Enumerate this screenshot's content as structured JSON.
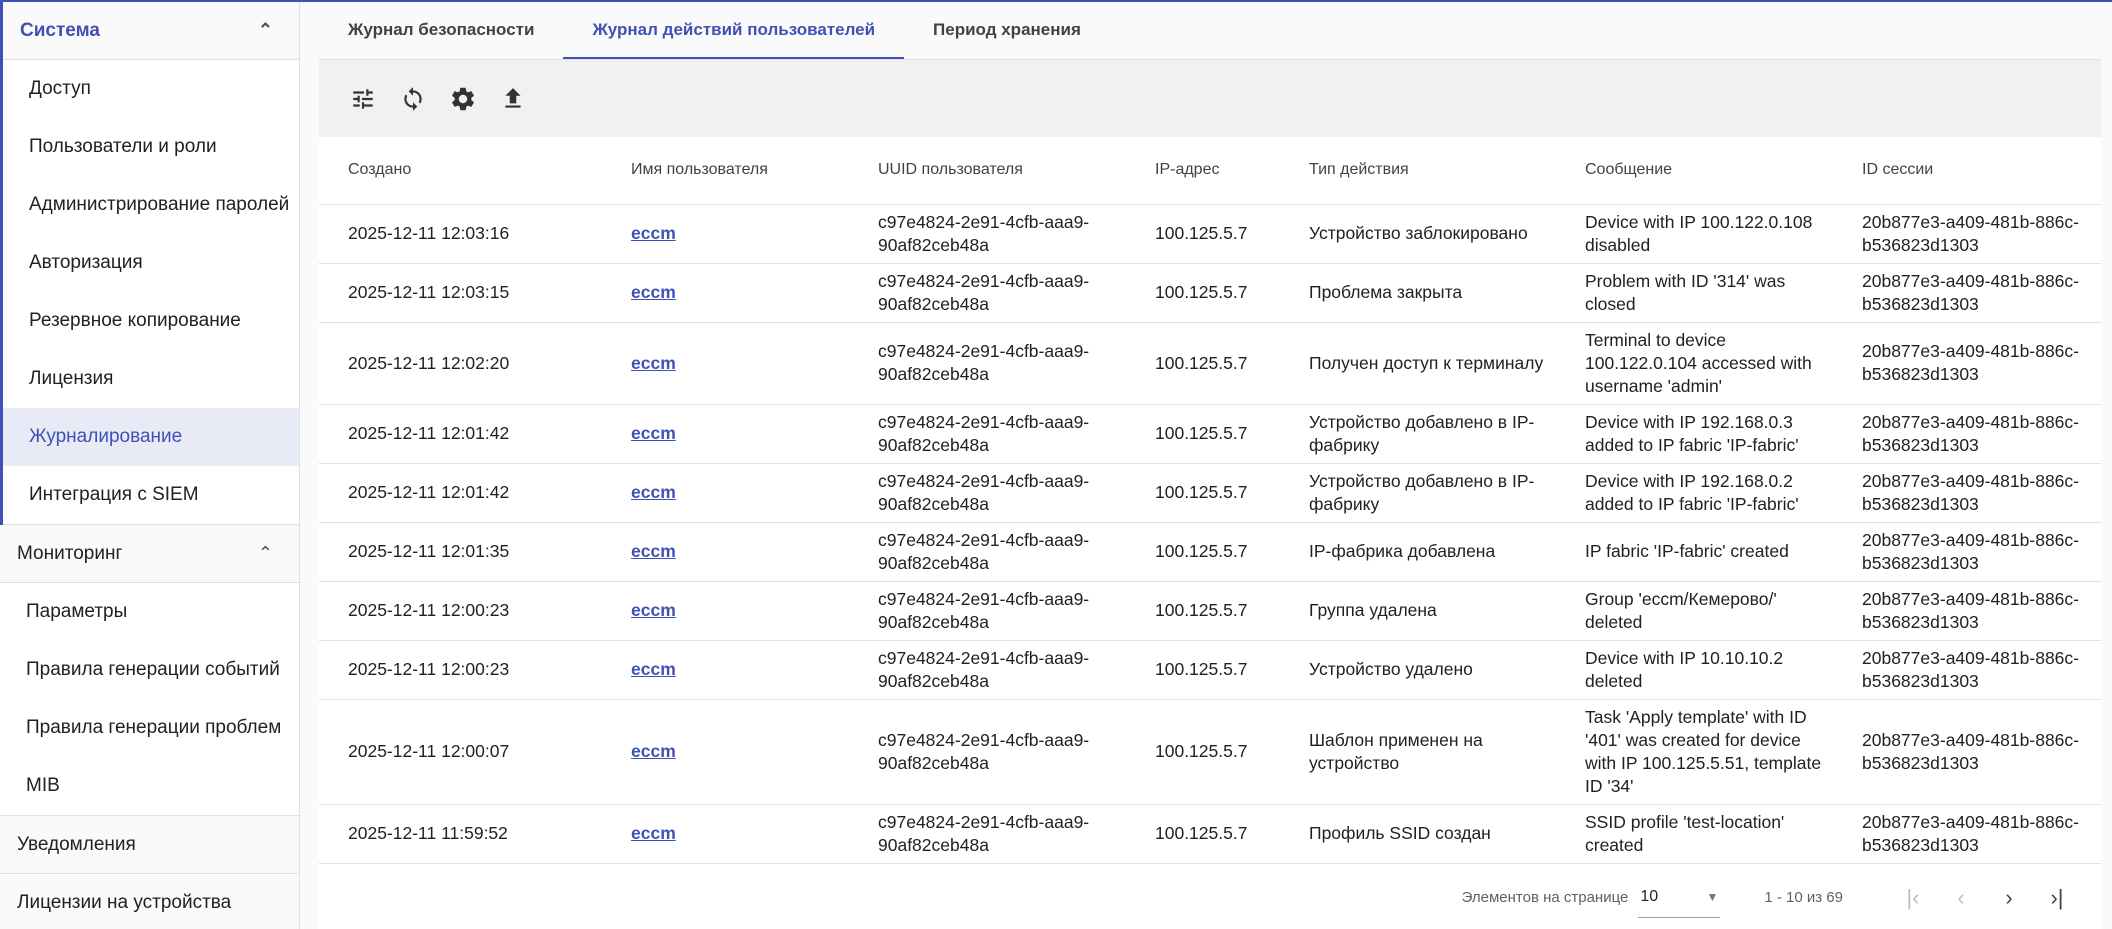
{
  "sidebar": {
    "sections": [
      {
        "label": "Система",
        "items": [
          "Доступ",
          "Пользователи и роли",
          "Администрирование паролей",
          "Авторизация",
          "Резервное копирование",
          "Лицензия",
          "Журналирование",
          "Интеграция с SIEM"
        ],
        "selected": "Журналирование"
      },
      {
        "label": "Мониторинг",
        "items": [
          "Параметры",
          "Правила генерации событий",
          "Правила генерации проблем",
          "MIB"
        ]
      },
      {
        "label": "Уведомления"
      },
      {
        "label": "Лицензии на устройства"
      }
    ]
  },
  "tabs": [
    "Журнал безопасности",
    "Журнал действий пользователей",
    "Период хранения"
  ],
  "active_tab": "Журнал действий пользователей",
  "toolbar": {
    "icons": [
      "tune-icon",
      "refresh-icon",
      "settings-icon",
      "upload-icon"
    ]
  },
  "table": {
    "columns": [
      "Создано",
      "Имя пользователя",
      "UUID пользователя",
      "IP-адрес",
      "Тип действия",
      "Сообщение",
      "ID сессии"
    ],
    "rows": [
      [
        "2025-12-11 12:03:16",
        "eccm",
        "c97e4824-2e91-4cfb-aaa9-90af82ceb48a",
        "100.125.5.7",
        "Устройство заблокировано",
        "Device with IP 100.122.0.108 disabled",
        "20b877e3-a409-481b-886c-b536823d1303"
      ],
      [
        "2025-12-11 12:03:15",
        "eccm",
        "c97e4824-2e91-4cfb-aaa9-90af82ceb48a",
        "100.125.5.7",
        "Проблема закрыта",
        "Problem with ID '314' was closed",
        "20b877e3-a409-481b-886c-b536823d1303"
      ],
      [
        "2025-12-11 12:02:20",
        "eccm",
        "c97e4824-2e91-4cfb-aaa9-90af82ceb48a",
        "100.125.5.7",
        "Получен доступ к терминалу",
        "Terminal to device 100.122.0.104 accessed with username 'admin'",
        "20b877e3-a409-481b-886c-b536823d1303"
      ],
      [
        "2025-12-11 12:01:42",
        "eccm",
        "c97e4824-2e91-4cfb-aaa9-90af82ceb48a",
        "100.125.5.7",
        "Устройство добавлено в IP-фабрику",
        "Device with IP 192.168.0.3 added to IP fabric 'IP-fabric'",
        "20b877e3-a409-481b-886c-b536823d1303"
      ],
      [
        "2025-12-11 12:01:42",
        "eccm",
        "c97e4824-2e91-4cfb-aaa9-90af82ceb48a",
        "100.125.5.7",
        "Устройство добавлено в IP-фабрику",
        "Device with IP 192.168.0.2 added to IP fabric 'IP-fabric'",
        "20b877e3-a409-481b-886c-b536823d1303"
      ],
      [
        "2025-12-11 12:01:35",
        "eccm",
        "c97e4824-2e91-4cfb-aaa9-90af82ceb48a",
        "100.125.5.7",
        "IP-фабрика добавлена",
        "IP fabric 'IP-fabric' created",
        "20b877e3-a409-481b-886c-b536823d1303"
      ],
      [
        "2025-12-11 12:00:23",
        "eccm",
        "c97e4824-2e91-4cfb-aaa9-90af82ceb48a",
        "100.125.5.7",
        "Группа удалена",
        "Group 'eccm/Кемерово/' deleted",
        "20b877e3-a409-481b-886c-b536823d1303"
      ],
      [
        "2025-12-11 12:00:23",
        "eccm",
        "c97e4824-2e91-4cfb-aaa9-90af82ceb48a",
        "100.125.5.7",
        "Устройство удалено",
        "Device with IP 10.10.10.2 deleted",
        "20b877e3-a409-481b-886c-b536823d1303"
      ],
      [
        "2025-12-11 12:00:07",
        "eccm",
        "c97e4824-2e91-4cfb-aaa9-90af82ceb48a",
        "100.125.5.7",
        "Шаблон применен на устройство",
        "Task 'Apply template' with ID '401' was created for device with IP 100.125.5.51, template ID '34'",
        "20b877e3-a409-481b-886c-b536823d1303"
      ],
      [
        "2025-12-11 11:59:52",
        "eccm",
        "c97e4824-2e91-4cfb-aaa9-90af82ceb48a",
        "100.125.5.7",
        "Профиль SSID создан",
        "SSID profile 'test-location' created",
        "20b877e3-a409-481b-886c-b536823d1303"
      ]
    ]
  },
  "pagination": {
    "page_size_label": "Элементов на странице",
    "page_size": "10",
    "range": "1 - 10 из 69"
  },
  "colors": {
    "accent": "#3f51b5",
    "selected_bg": "#e8eaf6"
  }
}
